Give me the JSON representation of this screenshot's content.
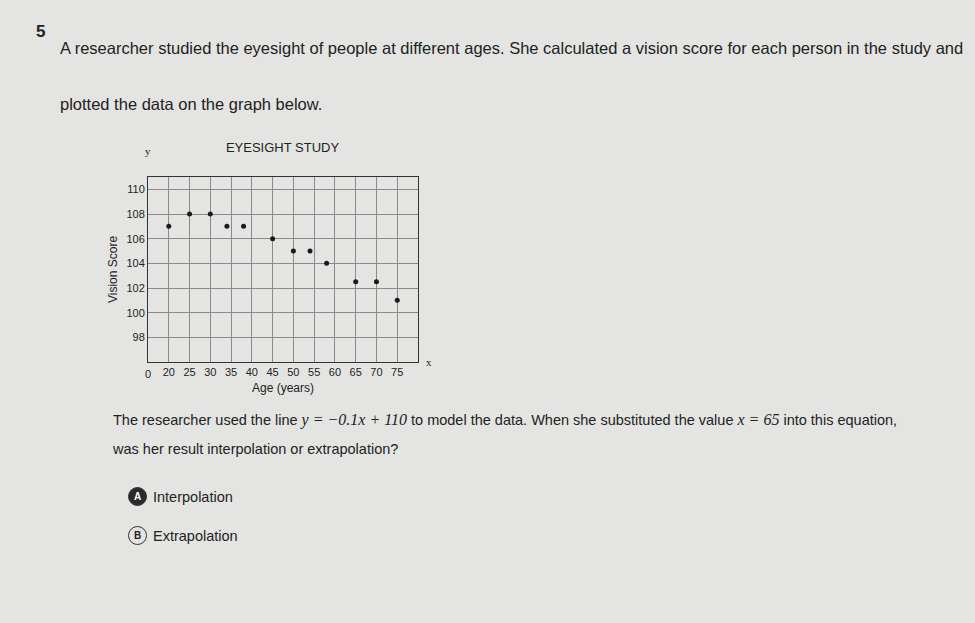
{
  "question": {
    "number": "5",
    "text": "A researcher studied the eyesight of people at different ages. She calculated a vision score for each person in the study and plotted the data on the graph below."
  },
  "chart_data": {
    "type": "scatter",
    "title": "EYESIGHT STUDY",
    "x_label": "Age (years)",
    "y_label": "Vision Score",
    "x": [
      20,
      25,
      30,
      34,
      38,
      45,
      50,
      54,
      58,
      65,
      70,
      75
    ],
    "values": [
      107,
      108,
      108,
      107,
      107,
      106,
      105,
      105,
      104,
      102.5,
      102.5,
      101
    ],
    "color": "#1a1a1a",
    "marker": "circle",
    "xlim": [
      15,
      80
    ],
    "xticks": [
      20,
      25,
      30,
      35,
      40,
      45,
      50,
      55,
      60,
      65,
      70,
      75
    ],
    "ylim": [
      96,
      111
    ],
    "yticks": [
      98,
      100,
      102,
      104,
      106,
      108,
      110
    ],
    "grid": true,
    "annotations": [
      "0",
      "y",
      "x"
    ]
  },
  "prompt": {
    "before": "The researcher used the line ",
    "equation": "y = −0.1x + 110",
    "middle": " to model the data. When she substituted the value ",
    "value": "x = 65",
    "after": " into this equation, was her result interpolation or extrapolation?"
  },
  "choices": [
    {
      "letter": "A",
      "text": "Interpolation"
    },
    {
      "letter": "B",
      "text": "Extrapolation"
    }
  ]
}
